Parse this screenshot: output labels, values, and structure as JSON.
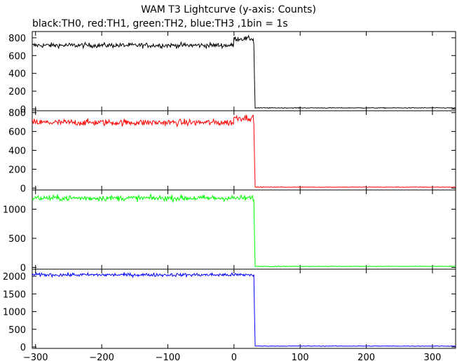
{
  "chart_data": {
    "type": "line",
    "title": "WAM T3 Lightcurve (y-axis: Counts)",
    "subtitle": "black:TH0, red:TH1, green:TH2, blue:TH3 ,1bin = 1s",
    "xlabel": "",
    "ylabel": "",
    "xlim": [
      -305,
      335
    ],
    "x_ticks": [
      -300,
      -200,
      -100,
      0,
      100,
      200,
      300
    ],
    "step_time": 31,
    "grid": false,
    "series": [
      {
        "name": "TH0",
        "color": "#000000",
        "level": 715,
        "noise": 20,
        "post": 12,
        "bump_start": 0,
        "bump_end": 30,
        "bump_level": 790,
        "ylim": [
          -20,
          870
        ],
        "yticks": [
          0,
          200,
          400,
          600,
          800
        ]
      },
      {
        "name": "TH1",
        "color": "#ff0000",
        "level": 695,
        "noise": 25,
        "post": 10,
        "bump_start": 0,
        "bump_end": 30,
        "bump_level": 745,
        "ylim": [
          -20,
          820
        ],
        "yticks": [
          0,
          200,
          400,
          600,
          800
        ]
      },
      {
        "name": "TH2",
        "color": "#00ff00",
        "level": 1190,
        "noise": 35,
        "post": 18,
        "bump_start": 0,
        "bump_end": 0,
        "bump_level": 1190,
        "ylim": [
          -30,
          1330
        ],
        "yticks": [
          0,
          500,
          1000
        ]
      },
      {
        "name": "TH3",
        "color": "#0000ff",
        "level": 2040,
        "noise": 35,
        "post": 25,
        "bump_start": 0,
        "bump_end": 0,
        "bump_level": 2040,
        "ylim": [
          -40,
          2200
        ],
        "yticks": [
          0,
          500,
          1000,
          1500,
          2000
        ]
      }
    ]
  }
}
